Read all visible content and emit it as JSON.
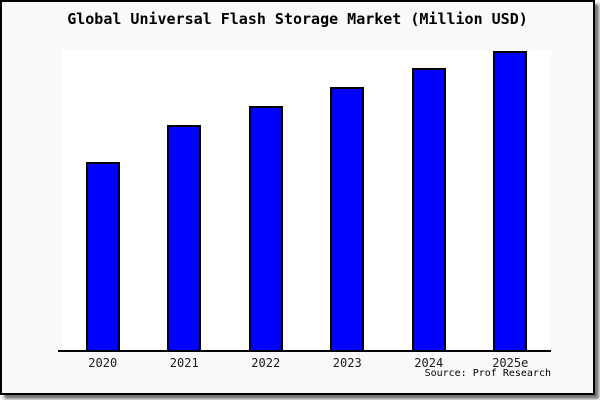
{
  "chart_data": {
    "type": "bar",
    "title": "Global Universal Flash Storage Market (Million USD)",
    "categories": [
      "2020",
      "2021",
      "2022",
      "2023",
      "2024",
      "2025e"
    ],
    "values": [
      189,
      226,
      245,
      264,
      283,
      300
    ],
    "xlabel": "",
    "ylabel": "",
    "ylim": [
      0,
      301
    ],
    "y_axis_visible": false,
    "grid": false,
    "legend": false,
    "bar_color": "#0000FF",
    "bar_border_color": "#000000"
  },
  "source": {
    "text": "Source: Prof Research"
  },
  "colors": {
    "frame_background": "#FAFAFA",
    "plot_background": "#FFFFFF",
    "frame_border": "#000000",
    "axis_line": "#000000",
    "title_text": "#000000",
    "tick_text": "#1A1A1A"
  }
}
